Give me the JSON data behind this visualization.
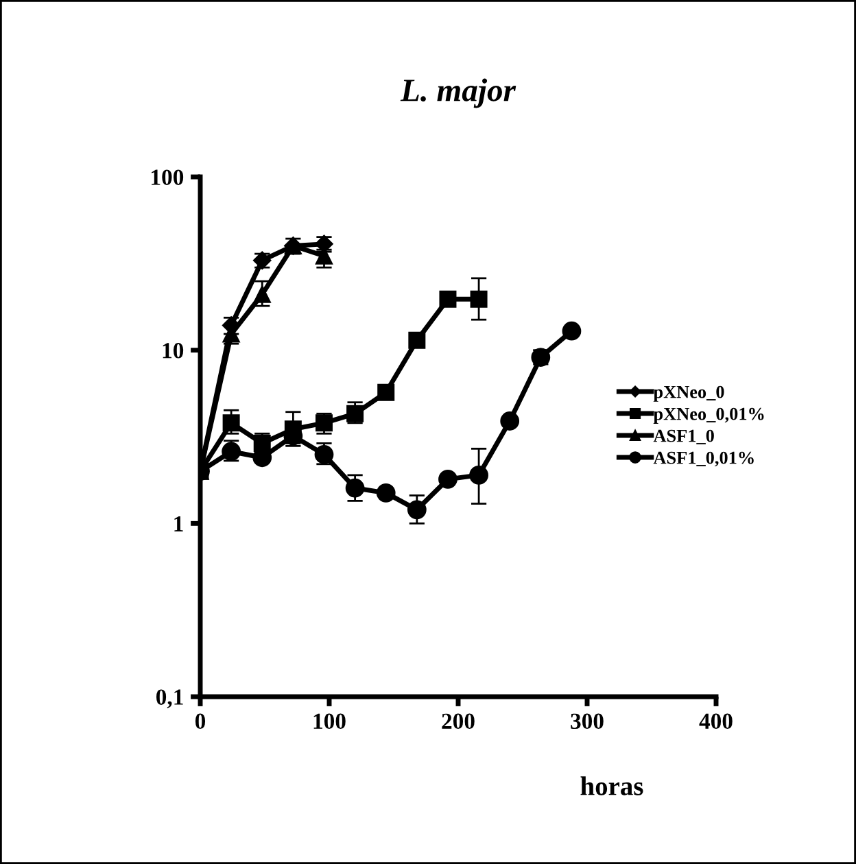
{
  "chart_data": {
    "type": "line",
    "title": "L. major",
    "xlabel": "horas",
    "xlim": [
      0,
      400
    ],
    "xticks": [
      0,
      100,
      200,
      300,
      400
    ],
    "ylim": [
      0.1,
      100
    ],
    "yticks": [
      {
        "value": 0.1,
        "label": "0,1"
      },
      1,
      10,
      100
    ],
    "log": "y",
    "grid": false,
    "legend": "right",
    "series": [
      {
        "name": "pXNeo_0",
        "color": "#000000",
        "marker": "diamond",
        "x": [
          0,
          24,
          48,
          72,
          96
        ],
        "values": [
          2,
          13.9,
          33,
          40,
          41
        ],
        "errors": [
          null,
          1.5,
          3,
          4,
          4
        ]
      },
      {
        "name": "pXNeo_0,01%",
        "color": "#000000",
        "marker": "square",
        "x": [
          0,
          24,
          48,
          72,
          96,
          120,
          144,
          168,
          192,
          216
        ],
        "values": [
          2,
          3.8,
          2.9,
          3.5,
          3.8,
          4.3,
          5.7,
          11.4,
          19.7,
          19.7
        ],
        "errors": [
          null,
          [
            3.3,
            4.5
          ],
          [
            2.9,
            3.3
          ],
          [
            2.9,
            4.4
          ],
          [
            3.3,
            4.3
          ],
          [
            3.8,
            5.0
          ],
          [
            5.2,
            6.3
          ],
          null,
          null,
          [
            15,
            26
          ]
        ]
      },
      {
        "name": "ASF1_0",
        "color": "#000000",
        "marker": "triangle",
        "x": [
          0,
          24,
          48,
          72,
          96
        ],
        "values": [
          2,
          12.4,
          21,
          40,
          35
        ],
        "errors": [
          null,
          1.5,
          [
            18,
            25
          ],
          null,
          [
            30,
            38
          ]
        ]
      },
      {
        "name": "ASF1_0,01%",
        "color": "#000000",
        "marker": "circle",
        "x": [
          0,
          24,
          48,
          72,
          96,
          120,
          144,
          168,
          192,
          216,
          240,
          264,
          288
        ],
        "values": [
          2,
          2.6,
          2.4,
          3.2,
          2.5,
          1.6,
          1.5,
          1.2,
          1.8,
          1.9,
          3.9,
          9.1,
          12.9
        ],
        "errors": [
          null,
          [
            2.3,
            3.0
          ],
          null,
          [
            2.8,
            3.2
          ],
          [
            2.2,
            2.9
          ],
          [
            1.35,
            1.9
          ],
          null,
          [
            1.0,
            1.45
          ],
          null,
          [
            1.3,
            2.7
          ],
          null,
          [
            8.3,
            10
          ],
          null
        ]
      }
    ]
  }
}
